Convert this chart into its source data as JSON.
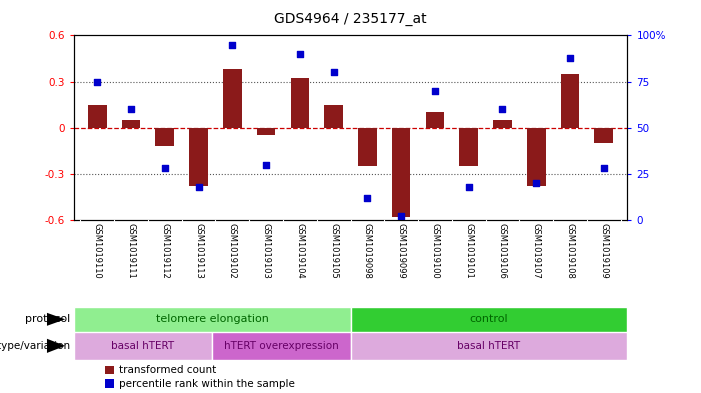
{
  "title": "GDS4964 / 235177_at",
  "samples": [
    "GSM1019110",
    "GSM1019111",
    "GSM1019112",
    "GSM1019113",
    "GSM1019102",
    "GSM1019103",
    "GSM1019104",
    "GSM1019105",
    "GSM1019098",
    "GSM1019099",
    "GSM1019100",
    "GSM1019101",
    "GSM1019106",
    "GSM1019107",
    "GSM1019108",
    "GSM1019109"
  ],
  "bar_values": [
    0.15,
    0.05,
    -0.12,
    -0.38,
    0.38,
    -0.05,
    0.32,
    0.15,
    -0.25,
    -0.58,
    0.1,
    -0.25,
    0.05,
    -0.38,
    0.35,
    -0.1
  ],
  "dot_values": [
    75,
    60,
    28,
    18,
    95,
    30,
    90,
    80,
    12,
    2,
    70,
    18,
    60,
    20,
    88,
    28
  ],
  "ylim_left": [
    -0.6,
    0.6
  ],
  "ylim_right": [
    0,
    100
  ],
  "yticks_left": [
    -0.6,
    -0.3,
    0.0,
    0.3,
    0.6
  ],
  "yticks_right": [
    0,
    25,
    50,
    75,
    100
  ],
  "ytick_labels_right": [
    "0",
    "25",
    "50",
    "75",
    "100%"
  ],
  "ytick_labels_left": [
    "-0.6",
    "-0.3",
    "0",
    "0.3",
    "0.6"
  ],
  "bar_color": "#8B1A1A",
  "dot_color": "#0000CC",
  "zero_line_color": "#CC0000",
  "dotted_line_color": "#555555",
  "protocol_row": [
    {
      "label": "telomere elongation",
      "start": 0,
      "end": 8,
      "color": "#90EE90"
    },
    {
      "label": "control",
      "start": 8,
      "end": 16,
      "color": "#32CD32"
    }
  ],
  "genotype_row": [
    {
      "label": "basal hTERT",
      "start": 0,
      "end": 4,
      "color": "#DDAADD"
    },
    {
      "label": "hTERT overexpression",
      "start": 4,
      "end": 8,
      "color": "#CC66CC"
    },
    {
      "label": "basal hTERT",
      "start": 8,
      "end": 16,
      "color": "#DDAADD"
    }
  ],
  "legend_items": [
    {
      "label": "transformed count",
      "color": "#8B1A1A"
    },
    {
      "label": "percentile rank within the sample",
      "color": "#0000CC"
    }
  ],
  "background_color": "#FFFFFF",
  "label_bg_color": "#C8C8C8"
}
